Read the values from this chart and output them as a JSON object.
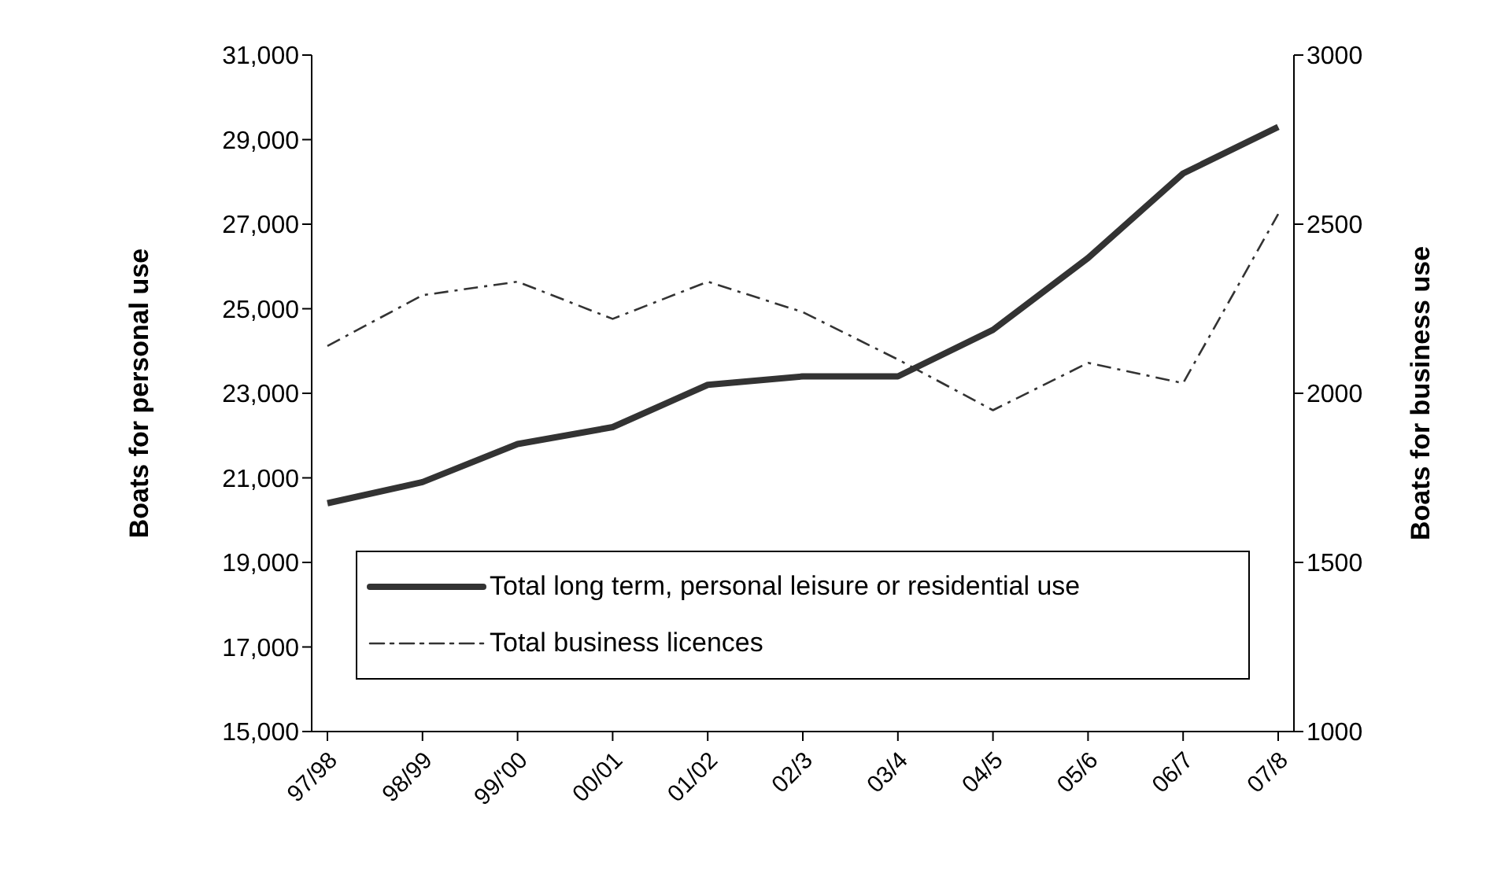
{
  "chart_data": {
    "type": "line",
    "ylabel": "Boats for personal use",
    "y2label": "Boats for business use",
    "categories": [
      "97/98",
      "98/99",
      "99/'00",
      "00/01",
      "01/02",
      "02/3",
      "03/4",
      "04/5",
      "05/6",
      "06/7",
      "07/8"
    ],
    "series": [
      {
        "name": "Total long term, personal leisure or residential use",
        "color": "#333333",
        "line_style": "solid",
        "values": [
          20400,
          20900,
          21800,
          22200,
          23200,
          23400,
          23400,
          24500,
          26200,
          28200,
          29300
        ]
      },
      {
        "name": "Total business licences",
        "color": "#333333",
        "line_style": "dashed",
        "axis": "y2",
        "values": [
          2140,
          2290,
          2330,
          2220,
          2330,
          2240,
          2100,
          1950,
          2090,
          2030,
          2530
        ]
      }
    ],
    "ylim": [
      15000,
      31000
    ],
    "yticks": [
      {
        "value": 15000,
        "label": "15,000"
      },
      {
        "value": 17000,
        "label": "17,000"
      },
      {
        "value": 19000,
        "label": "19,000"
      },
      {
        "value": 21000,
        "label": "21,000"
      },
      {
        "value": 23000,
        "label": "23,000"
      },
      {
        "value": 25000,
        "label": "25,000"
      },
      {
        "value": 27000,
        "label": "27,000"
      },
      {
        "value": 29000,
        "label": "29,000"
      },
      {
        "value": 31000,
        "label": "31,000"
      }
    ],
    "y2lim": [
      1000,
      3000
    ],
    "y2ticks": [
      1000,
      1500,
      2000,
      2500,
      3000
    ],
    "grid": false,
    "legend": "bottom left",
    "marker": "none"
  }
}
